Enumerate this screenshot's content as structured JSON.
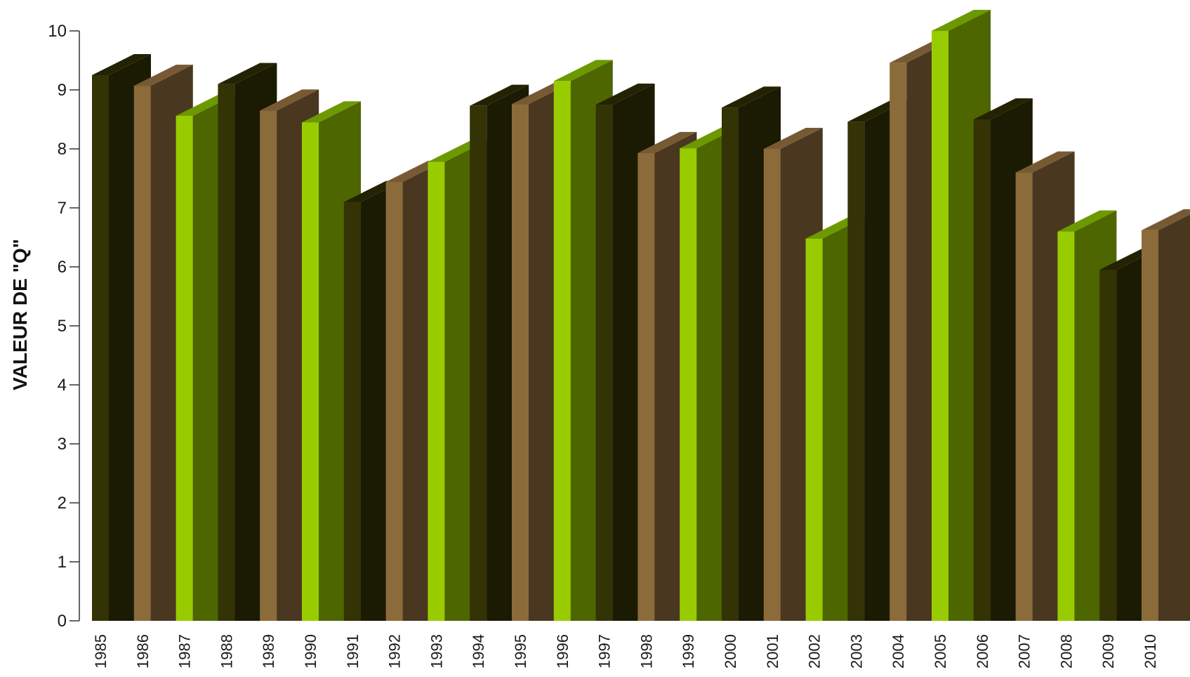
{
  "chart_data": {
    "type": "bar",
    "ylabel": "VALEUR DE \"Q\"",
    "xlabel": "",
    "ylim": [
      0,
      10
    ],
    "yticks": [
      0,
      1,
      2,
      3,
      4,
      5,
      6,
      7,
      8,
      9,
      10
    ],
    "categories": [
      "1985",
      "1986",
      "1987",
      "1988",
      "1989",
      "1990",
      "1991",
      "1992",
      "1993",
      "1994",
      "1995",
      "1996",
      "1997",
      "1998",
      "1999",
      "2000",
      "2001",
      "2002",
      "2003",
      "2004",
      "2005",
      "2006",
      "2007",
      "2008",
      "2009",
      "2010"
    ],
    "values": [
      9.25,
      9.07,
      8.56,
      9.1,
      8.65,
      8.45,
      7.1,
      7.44,
      7.78,
      8.73,
      8.76,
      9.15,
      8.75,
      7.93,
      8.01,
      8.7,
      8.0,
      6.48,
      8.46,
      9.46,
      10.0,
      8.5,
      7.6,
      6.6,
      5.95,
      6.62
    ],
    "colors": [
      "dark",
      "brown",
      "green"
    ],
    "palette": {
      "dark": {
        "front": "#333306",
        "side": "#1b1a03",
        "top": "#232303"
      },
      "brown": {
        "front": "#8c6b3b",
        "side": "#4a3720",
        "top": "#775a33"
      },
      "green": {
        "front": "#99cc00",
        "side": "#4d6600",
        "top": "#6c9900"
      }
    },
    "grid": false,
    "legend": "none"
  }
}
